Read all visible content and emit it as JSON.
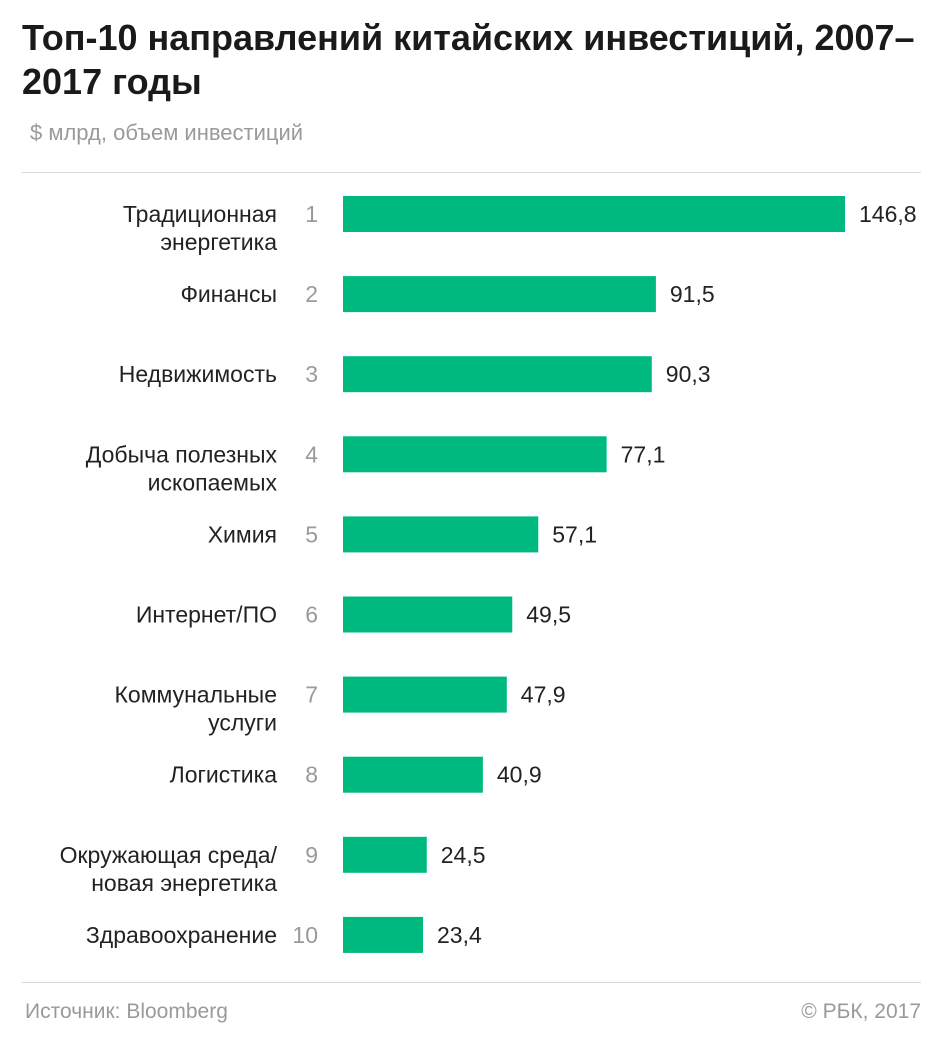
{
  "header": {
    "title": "Топ-10 направлений китайских инвестиций, 2007–2017 годы",
    "subtitle": "$ млрд, объем инвестиций"
  },
  "footer": {
    "source": "Источник: Bloomberg",
    "copyright": "© РБК, 2017"
  },
  "colors": {
    "bar": "#00b97e",
    "rank": "#9a9a9a",
    "text": "#222222"
  },
  "chart_data": {
    "type": "bar",
    "orientation": "horizontal",
    "title": "Топ-10 направлений китайских инвестиций, 2007–2017 годы",
    "subtitle": "$ млрд, объем инвестиций",
    "categories": [
      [
        "Традиционная",
        "энергетика"
      ],
      [
        "Финансы"
      ],
      [
        "Недвижимость"
      ],
      [
        "Добыча полезных",
        "ископаемых"
      ],
      [
        "Химия"
      ],
      [
        "Интернет/ПО"
      ],
      [
        "Коммунальные",
        "услуги"
      ],
      [
        "Логистика"
      ],
      [
        "Окружающая среда/",
        "новая энергетика"
      ],
      [
        "Здравоохранение"
      ]
    ],
    "ranks": [
      "1",
      "2",
      "3",
      "4",
      "5",
      "6",
      "7",
      "8",
      "9",
      "10"
    ],
    "values": [
      146.8,
      91.5,
      90.3,
      77.1,
      57.1,
      49.5,
      47.9,
      40.9,
      24.5,
      23.4
    ],
    "value_labels": [
      "146,8",
      "91,5",
      "90,3",
      "77,1",
      "57,1",
      "49,5",
      "47,9",
      "40,9",
      "24,5",
      "23,4"
    ],
    "xlim": [
      0,
      146.8
    ],
    "grid": false
  }
}
